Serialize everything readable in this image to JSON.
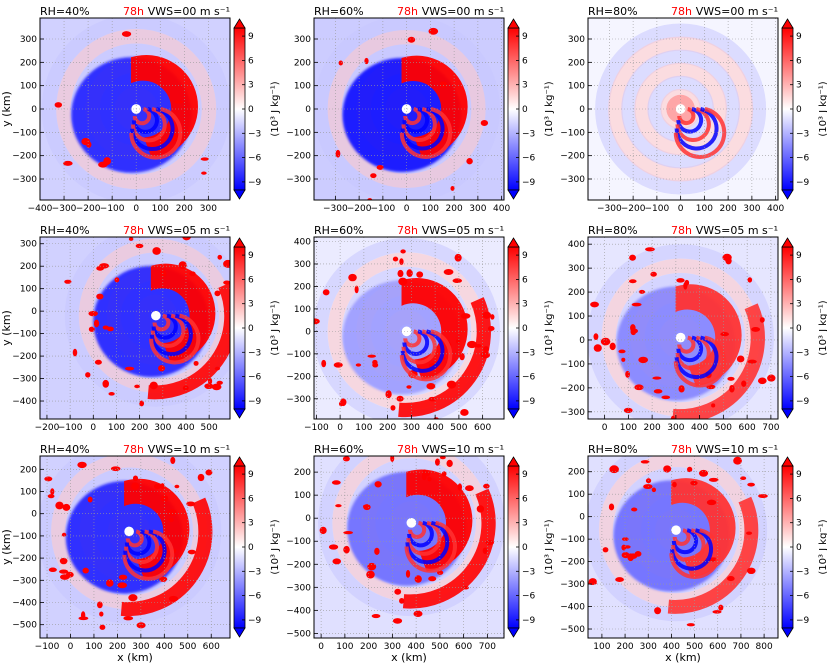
{
  "figure": {
    "colorbar": {
      "label": "(10³ J kg⁻¹)",
      "ticks": [
        "9",
        "6",
        "3",
        "0",
        "−3",
        "−6",
        "−9"
      ],
      "colormap": "bwr",
      "range": [
        -10,
        10
      ]
    },
    "colors": {
      "red": "#ff0000",
      "blue": "#0000ff",
      "white": "#ffffff",
      "time_label": "#ff0000"
    },
    "ylabel": "y (km)",
    "xlabel": "x (km)"
  },
  "chart_data": [
    {
      "type": "heatmap",
      "rh": "RH=40%",
      "time": "78h",
      "vws": "VWS=00 m s⁻¹",
      "xticks": [
        "−400",
        "−300",
        "−200",
        "−100",
        "0",
        "100",
        "200",
        "300"
      ],
      "yticks": [
        "300",
        "200",
        "100",
        "0",
        "−100",
        "−200",
        "−300"
      ],
      "xlim": [
        -400,
        390
      ],
      "ylim": [
        -390,
        390
      ],
      "center": [
        0,
        0
      ],
      "eye_value": 0,
      "arm_value": 10,
      "outer_value": -9,
      "pattern": "dipole"
    },
    {
      "type": "heatmap",
      "rh": "RH=60%",
      "time": "78h",
      "vws": "VWS=00 m s⁻¹",
      "xticks": [
        "−300",
        "−200",
        "−100",
        "0",
        "100",
        "200",
        "300",
        "400"
      ],
      "yticks": [
        "300",
        "200",
        "100",
        "0",
        "−100",
        "−200",
        "−300"
      ],
      "xlim": [
        -390,
        410
      ],
      "ylim": [
        -390,
        390
      ],
      "center": [
        0,
        0
      ],
      "eye_value": 0,
      "arm_value": 10,
      "outer_value": -10,
      "pattern": "dipole"
    },
    {
      "type": "heatmap",
      "rh": "RH=80%",
      "time": "78h",
      "vws": "VWS=00 m s⁻¹",
      "xticks": [
        "−300",
        "−200",
        "−100",
        "0",
        "100",
        "200",
        "300",
        "400"
      ],
      "yticks": [
        "300",
        "200",
        "100",
        "0",
        "−100",
        "−200",
        "−300"
      ],
      "xlim": [
        -390,
        410
      ],
      "ylim": [
        -390,
        390
      ],
      "center": [
        0,
        0
      ],
      "eye_value": 0,
      "arm_value": 4,
      "outer_value": -2,
      "pattern": "weak"
    },
    {
      "type": "heatmap",
      "rh": "RH=40%",
      "time": "78h",
      "vws": "VWS=05 m s⁻¹",
      "xticks": [
        "−200",
        "−100",
        "0",
        "100",
        "200",
        "300",
        "400",
        "500"
      ],
      "yticks": [
        "300",
        "200",
        "100",
        "0",
        "−100",
        "−200",
        "−300",
        "−400"
      ],
      "xlim": [
        -230,
        590
      ],
      "ylim": [
        -480,
        330
      ],
      "center": [
        270,
        -20
      ],
      "eye_value": 0,
      "arm_value": 10,
      "outer_value": -9,
      "pattern": "spiral"
    },
    {
      "type": "heatmap",
      "rh": "RH=60%",
      "time": "78h",
      "vws": "VWS=05 m s⁻¹",
      "xticks": [
        "−100",
        "0",
        "100",
        "200",
        "300",
        "400",
        "500",
        "600"
      ],
      "yticks": [
        "400",
        "300",
        "200",
        "100",
        "0",
        "−100",
        "−200",
        "−300"
      ],
      "xlim": [
        -110,
        690
      ],
      "ylim": [
        -390,
        420
      ],
      "center": [
        280,
        0
      ],
      "eye_value": 0,
      "arm_value": 10,
      "outer_value": -4,
      "pattern": "spiral"
    },
    {
      "type": "heatmap",
      "rh": "RH=80%",
      "time": "78h",
      "vws": "VWS=05 m s⁻¹",
      "xticks": [
        "0",
        "100",
        "200",
        "300",
        "400",
        "500",
        "600",
        "700"
      ],
      "yticks": [
        "400",
        "300",
        "200",
        "100",
        "0",
        "−100",
        "−200",
        "−300"
      ],
      "xlim": [
        -70,
        730
      ],
      "ylim": [
        -330,
        430
      ],
      "center": [
        320,
        10
      ],
      "eye_value": 0,
      "arm_value": 8,
      "outer_value": -5,
      "pattern": "spiral"
    },
    {
      "type": "heatmap",
      "rh": "RH=40%",
      "time": "78h",
      "vws": "VWS=10 m s⁻¹",
      "xticks": [
        "−100",
        "0",
        "100",
        "200",
        "300",
        "400",
        "500",
        "600"
      ],
      "yticks": [
        "200",
        "100",
        "0",
        "−100",
        "−200",
        "−300",
        "−400",
        "−500"
      ],
      "xlim": [
        -130,
        680
      ],
      "ylim": [
        -560,
        260
      ],
      "center": [
        250,
        -80
      ],
      "eye_value": 0,
      "arm_value": 10,
      "outer_value": -9,
      "pattern": "spiral"
    },
    {
      "type": "heatmap",
      "rh": "RH=60%",
      "time": "78h",
      "vws": "VWS=10 m s⁻¹",
      "xticks": [
        "0",
        "100",
        "200",
        "300",
        "400",
        "500",
        "600",
        "700"
      ],
      "yticks": [
        "200",
        "100",
        "0",
        "−100",
        "−200",
        "−300",
        "−400",
        "−500"
      ],
      "xlim": [
        -30,
        770
      ],
      "ylim": [
        -520,
        270
      ],
      "center": [
        380,
        -20
      ],
      "eye_value": 0,
      "arm_value": 10,
      "outer_value": -6,
      "pattern": "spiral"
    },
    {
      "type": "heatmap",
      "rh": "RH=80%",
      "time": "78h",
      "vws": "VWS=10 m s⁻¹",
      "xticks": [
        "100",
        "200",
        "300",
        "400",
        "500",
        "600",
        "700",
        "800"
      ],
      "yticks": [
        "200",
        "100",
        "0",
        "−100",
        "−200",
        "−300",
        "−400",
        "−500"
      ],
      "xlim": [
        40,
        860
      ],
      "ylim": [
        -540,
        270
      ],
      "center": [
        420,
        -60
      ],
      "eye_value": 0,
      "arm_value": 8,
      "outer_value": -6,
      "pattern": "spiral"
    }
  ]
}
